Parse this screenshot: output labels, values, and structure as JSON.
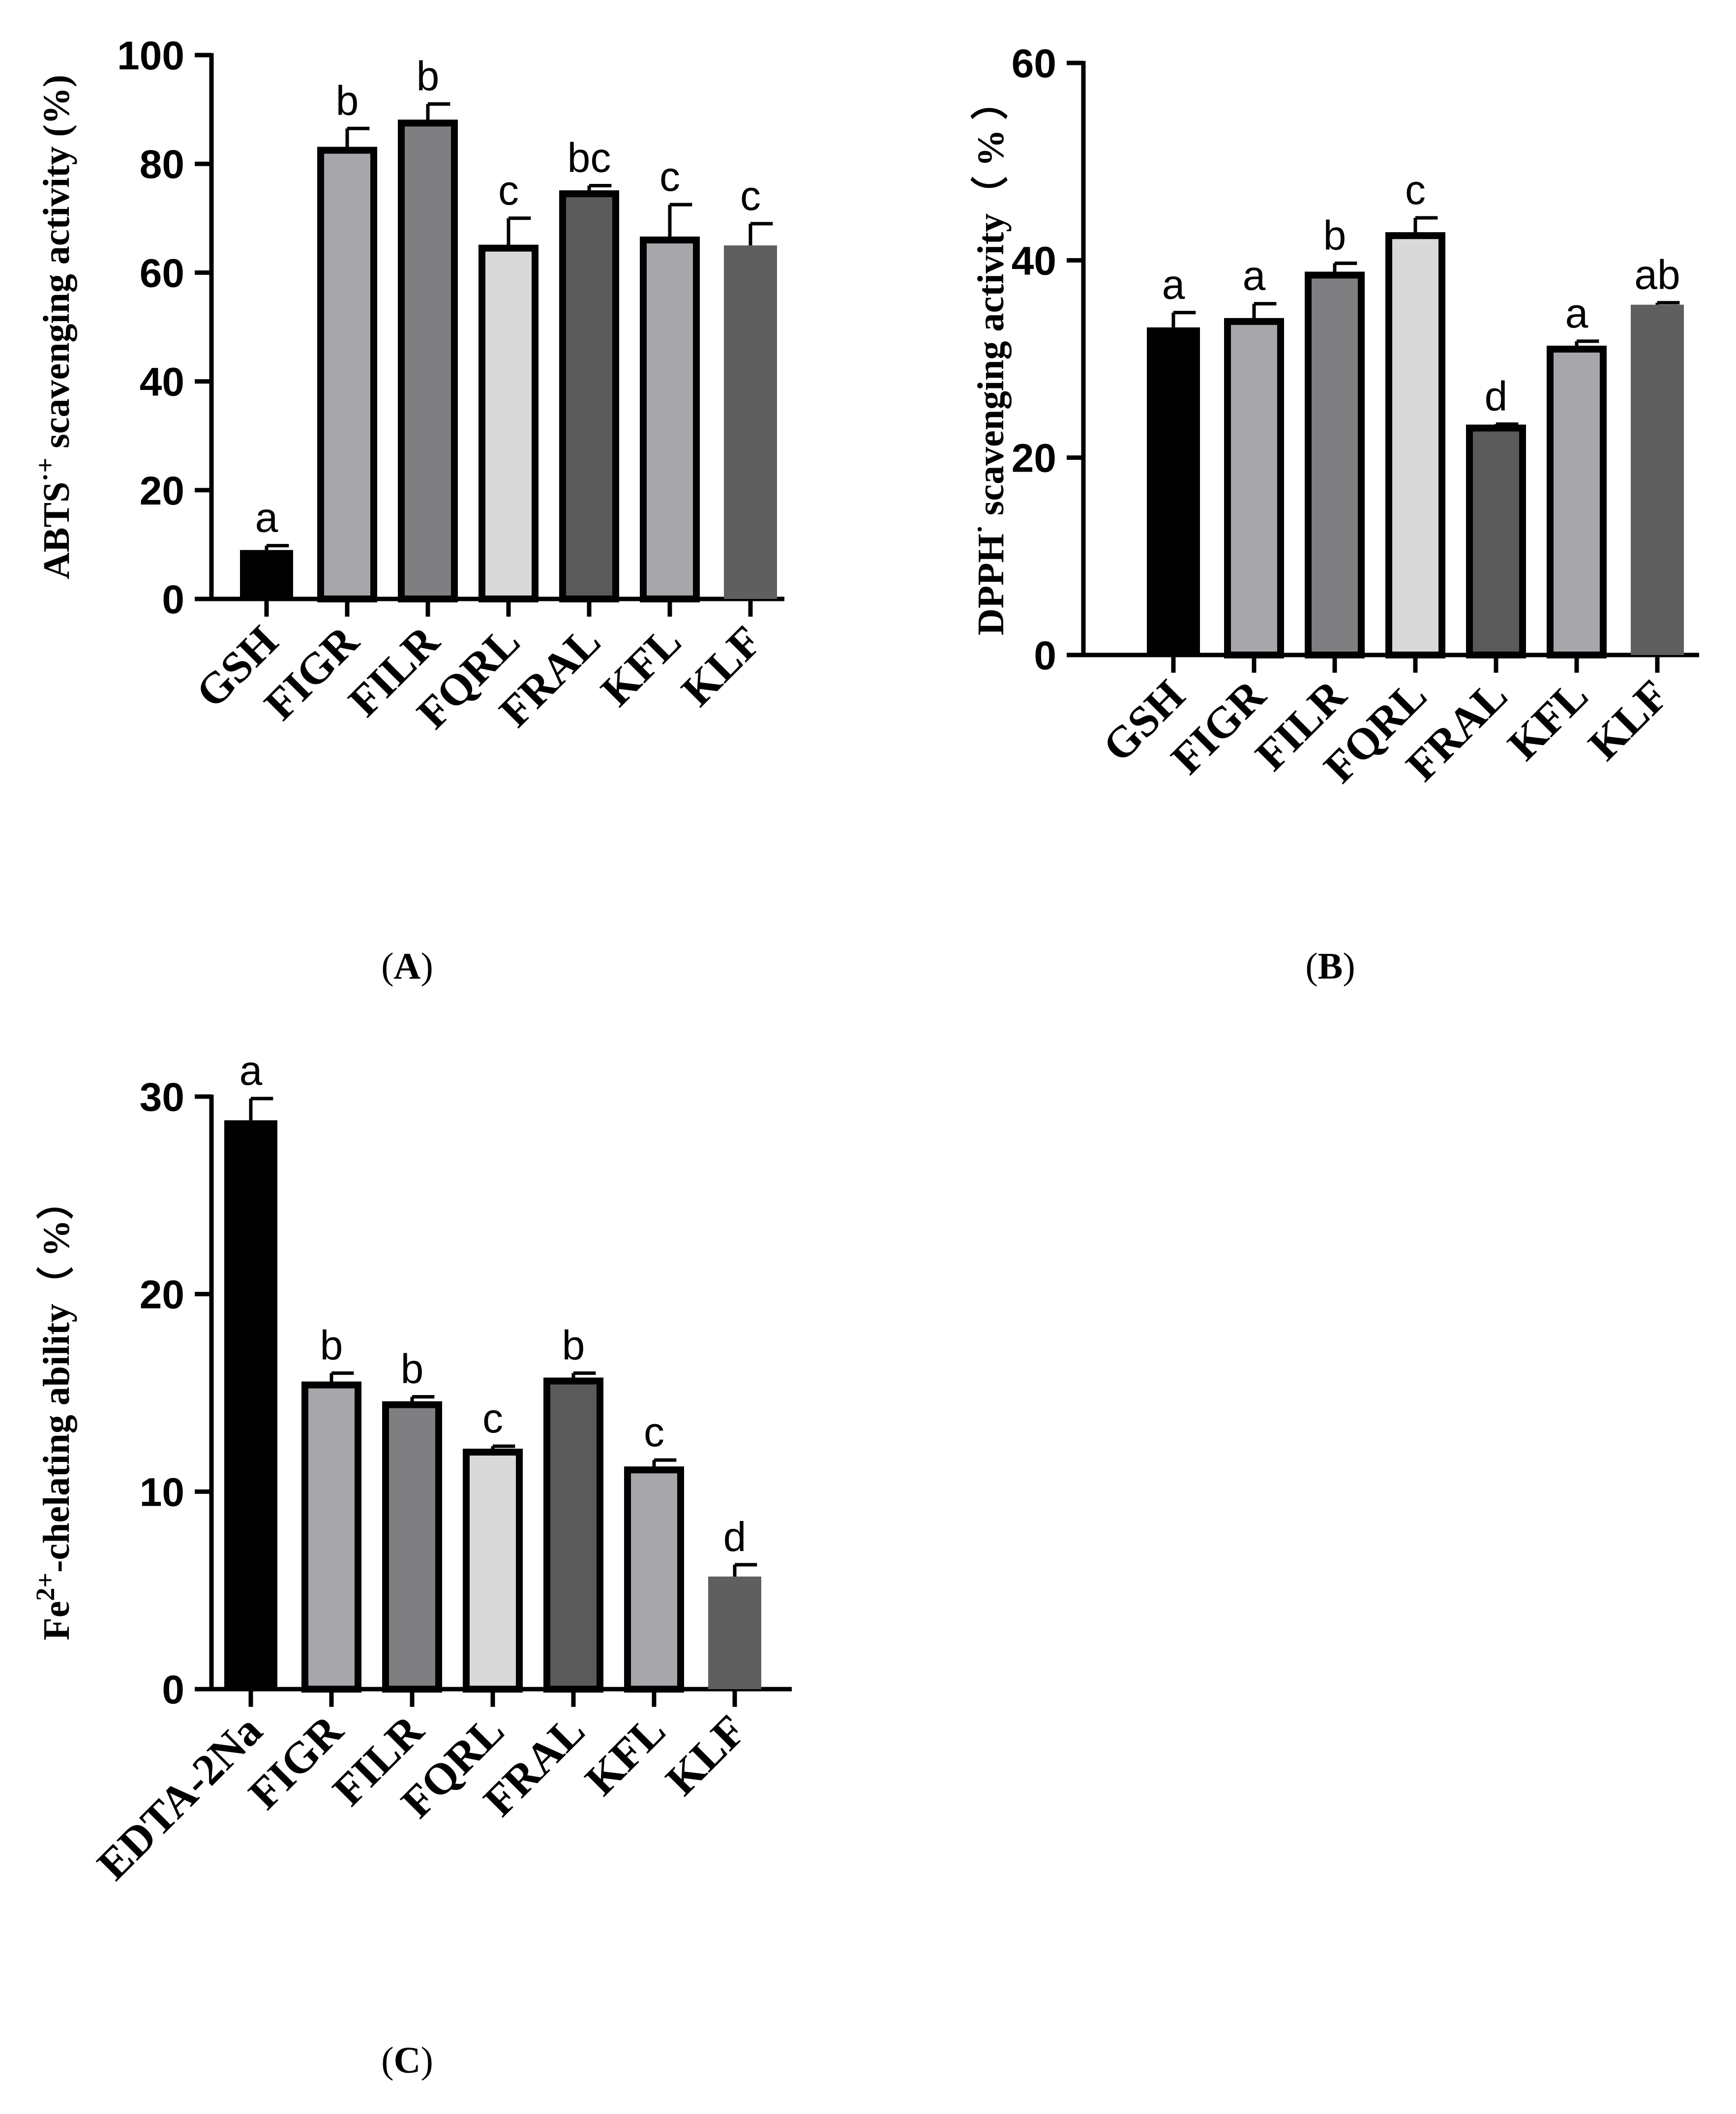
{
  "chart_data": [
    {
      "type": "bar",
      "panel": "A",
      "ylabel_main": "ABTS",
      "ylabel_sup": "·+",
      "ylabel_rest": " scavenging activity (%)",
      "ylim": [
        0,
        100
      ],
      "yticks": [
        "0",
        "20",
        "40",
        "60",
        "80",
        "100"
      ],
      "categories": [
        "GSH",
        "FIGR",
        "FILR",
        "FQRL",
        "FRAL",
        "KFL",
        "KLF"
      ],
      "values": [
        9,
        82.5,
        87.5,
        64.5,
        74.5,
        66,
        65
      ],
      "errors": [
        0.8,
        4,
        3.5,
        5.5,
        1.5,
        6.5,
        4
      ],
      "letters": [
        "a",
        "b",
        "b",
        "c",
        "bc",
        "c",
        "c"
      ],
      "colors": [
        "#000000",
        "#a6a6ab",
        "#7f7f81",
        "#d9d9d9",
        "#5a5a5b",
        "#a6a6ab",
        "#5f5f60"
      ],
      "border": [
        false,
        true,
        true,
        true,
        true,
        true,
        false
      ]
    },
    {
      "type": "bar",
      "panel": "B",
      "ylabel_main": "DPPH",
      "ylabel_sup": "·",
      "ylabel_rest": " scavenging activity（ % ）",
      "ylim": [
        0,
        60
      ],
      "yticks": [
        "0",
        "20",
        "40",
        "60"
      ],
      "categories": [
        "GSH",
        "FIGR",
        "FILR",
        "FQRL",
        "FRAL",
        "KFL",
        "KLF"
      ],
      "values": [
        33.2,
        33.8,
        38.5,
        42.5,
        23,
        31,
        35.5
      ],
      "errors": [
        1.5,
        1.8,
        1.2,
        1.8,
        0.4,
        0.8,
        0.2
      ],
      "letters": [
        "a",
        "a",
        "b",
        "c",
        "d",
        "a",
        "ab"
      ],
      "colors": [
        "#000000",
        "#a6a6ab",
        "#7f7f81",
        "#d9d9d9",
        "#5a5a5b",
        "#a6a6ab",
        "#5f5f60"
      ],
      "border": [
        false,
        true,
        true,
        true,
        true,
        true,
        false
      ]
    },
    {
      "type": "bar",
      "panel": "C",
      "ylabel_main": "Fe",
      "ylabel_sup": "2+",
      "ylabel_rest": "-chelating ability（ %）",
      "ylim": [
        0,
        30
      ],
      "yticks": [
        "0",
        "10",
        "20",
        "30"
      ],
      "categories": [
        "EDTA-2Na",
        "FIGR",
        "FILR",
        "FQRL",
        "FRAL",
        "KFL",
        "KLF"
      ],
      "values": [
        28.8,
        15.4,
        14.4,
        12,
        15.6,
        11.1,
        5.7
      ],
      "errors": [
        1.1,
        0.6,
        0.4,
        0.3,
        0.4,
        0.5,
        0.6
      ],
      "letters": [
        "a",
        "b",
        "b",
        "c",
        "b",
        "c",
        "d"
      ],
      "colors": [
        "#000000",
        "#a6a6ab",
        "#7f7f81",
        "#d9d9d9",
        "#5a5a5b",
        "#a6a6ab",
        "#5f5f60"
      ],
      "border": [
        false,
        true,
        true,
        true,
        true,
        true,
        false
      ]
    }
  ],
  "captions": {
    "a": "A",
    "b": "B",
    "c": "C"
  }
}
